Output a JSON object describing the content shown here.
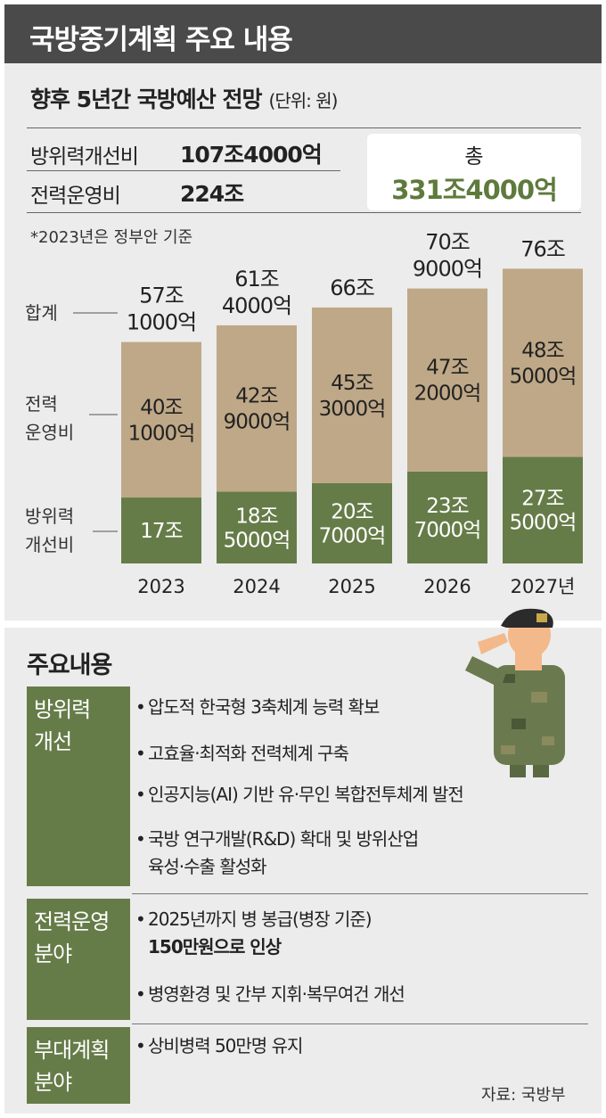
{
  "title": "국방중기계획 주요 내용",
  "budget": {
    "heading": "향후 5년간 국방예산 전망",
    "unit": "(단위: 원)",
    "rows": [
      {
        "label": "방위력개선비",
        "value": "107조4000억"
      },
      {
        "label": "전력운영비",
        "value": "224조"
      }
    ],
    "total_label": "총",
    "total_value": "331조4000억",
    "note": "*2023년은 정부안 기준"
  },
  "chart_data": {
    "type": "bar",
    "stacked": true,
    "categories": [
      "2023",
      "2024",
      "2025",
      "2026",
      "2027년"
    ],
    "series": [
      {
        "name": "방위력 개선비",
        "values": [
          17,
          18.5,
          20.7,
          23.7,
          27.5
        ],
        "labels": [
          [
            "17조"
          ],
          [
            "18조",
            "5000억"
          ],
          [
            "20조",
            "7000억"
          ],
          [
            "23조",
            "7000억"
          ],
          [
            "27조",
            "5000억"
          ]
        ],
        "color": "#667c48"
      },
      {
        "name": "전력 운영비",
        "values": [
          40.1,
          42.9,
          45.3,
          47.2,
          48.5
        ],
        "labels": [
          [
            "40조",
            "1000억"
          ],
          [
            "42조",
            "9000억"
          ],
          [
            "45조",
            "3000억"
          ],
          [
            "47조",
            "2000억"
          ],
          [
            "48조",
            "5000억"
          ]
        ],
        "color": "#bfa887"
      }
    ],
    "totals": [
      57.1,
      61.4,
      66,
      70.9,
      76
    ],
    "total_labels": [
      [
        "57조",
        "1000억"
      ],
      [
        "61조",
        "4000억"
      ],
      [
        "66조"
      ],
      [
        "70조",
        "9000억"
      ],
      [
        "76조"
      ]
    ],
    "total_series_name": "합계"
  },
  "details": {
    "heading": "주요내용",
    "sections": [
      {
        "category": [
          "방위력",
          "개선"
        ],
        "items": [
          [
            "압도적 한국형 3축체계 능력 확보"
          ],
          [
            "고효율·최적화 전력체계 구축"
          ],
          [
            "인공지능(AI) 기반 유·무인 복합전투체계 발전"
          ],
          [
            "국방 연구개발(R&D) 확대 및 방위산업",
            "육성·수출 활성화"
          ]
        ]
      },
      {
        "category": [
          "전력운영",
          "분야"
        ],
        "items": [
          [
            "2025년까지 병 봉급(병장 기준)",
            "150만원으로 인상"
          ],
          [
            "병영환경 및 간부 지휘·복무여건 개선"
          ]
        ]
      },
      {
        "category": [
          "부대계획",
          "분야"
        ],
        "items": [
          [
            "상비병력 50만명 유지"
          ]
        ]
      }
    ],
    "bullet": "•"
  },
  "source": "자료: 국방부"
}
